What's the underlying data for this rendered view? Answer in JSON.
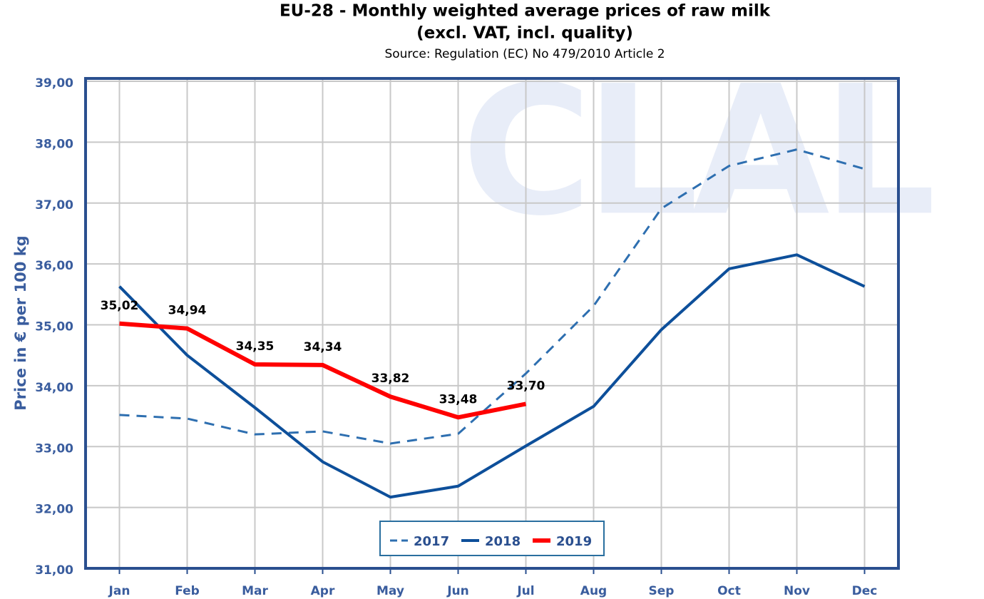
{
  "chart_data": {
    "type": "line",
    "title": "EU-28 - Monthly weighted average prices of raw milk",
    "subtitle": "(excl. VAT, incl. quality)",
    "source": "Source: Regulation (EC) No 479/2010 Article 2",
    "watermark": "CLAL",
    "y_label": "Price in € per 100 kg",
    "categories": [
      "Jan",
      "Feb",
      "Mar",
      "Apr",
      "May",
      "Jun",
      "Jul",
      "Aug",
      "Sep",
      "Oct",
      "Nov",
      "Dec"
    ],
    "series": [
      {
        "name": "2017",
        "color": "#2e6fb0",
        "line_style": "dashed",
        "line_width": 3,
        "values": [
          33.52,
          33.46,
          33.2,
          33.25,
          33.05,
          33.21,
          34.2,
          35.31,
          36.91,
          37.61,
          37.88,
          37.56
        ]
      },
      {
        "name": "2018",
        "color": "#0d4f9a",
        "line_style": "solid",
        "line_width": 4,
        "values": [
          35.63,
          34.5,
          33.64,
          32.75,
          32.17,
          32.35,
          33.01,
          33.66,
          34.92,
          35.92,
          36.15,
          35.63
        ]
      },
      {
        "name": "2019",
        "color": "#ff0000",
        "line_style": "solid",
        "line_width": 6,
        "values": [
          35.02,
          34.94,
          34.35,
          34.34,
          33.82,
          33.48,
          33.7,
          null,
          null,
          null,
          null,
          null
        ],
        "value_labels": [
          "35,02",
          "34,94",
          "34,35",
          "34,34",
          "33,82",
          "33,48",
          "33,70",
          null,
          null,
          null,
          null,
          null
        ]
      }
    ],
    "ylim": [
      31,
      39
    ],
    "yticks": [
      {
        "value": 31,
        "label": "31,00"
      },
      {
        "value": 32,
        "label": "32,00"
      },
      {
        "value": 33,
        "label": "33,00"
      },
      {
        "value": 34,
        "label": "34,00"
      },
      {
        "value": 35,
        "label": "35,00"
      },
      {
        "value": 36,
        "label": "36,00"
      },
      {
        "value": 37,
        "label": "37,00"
      },
      {
        "value": 38,
        "label": "38,00"
      },
      {
        "value": 39,
        "label": "39,00"
      }
    ],
    "grid": true,
    "legend": "bottom"
  }
}
